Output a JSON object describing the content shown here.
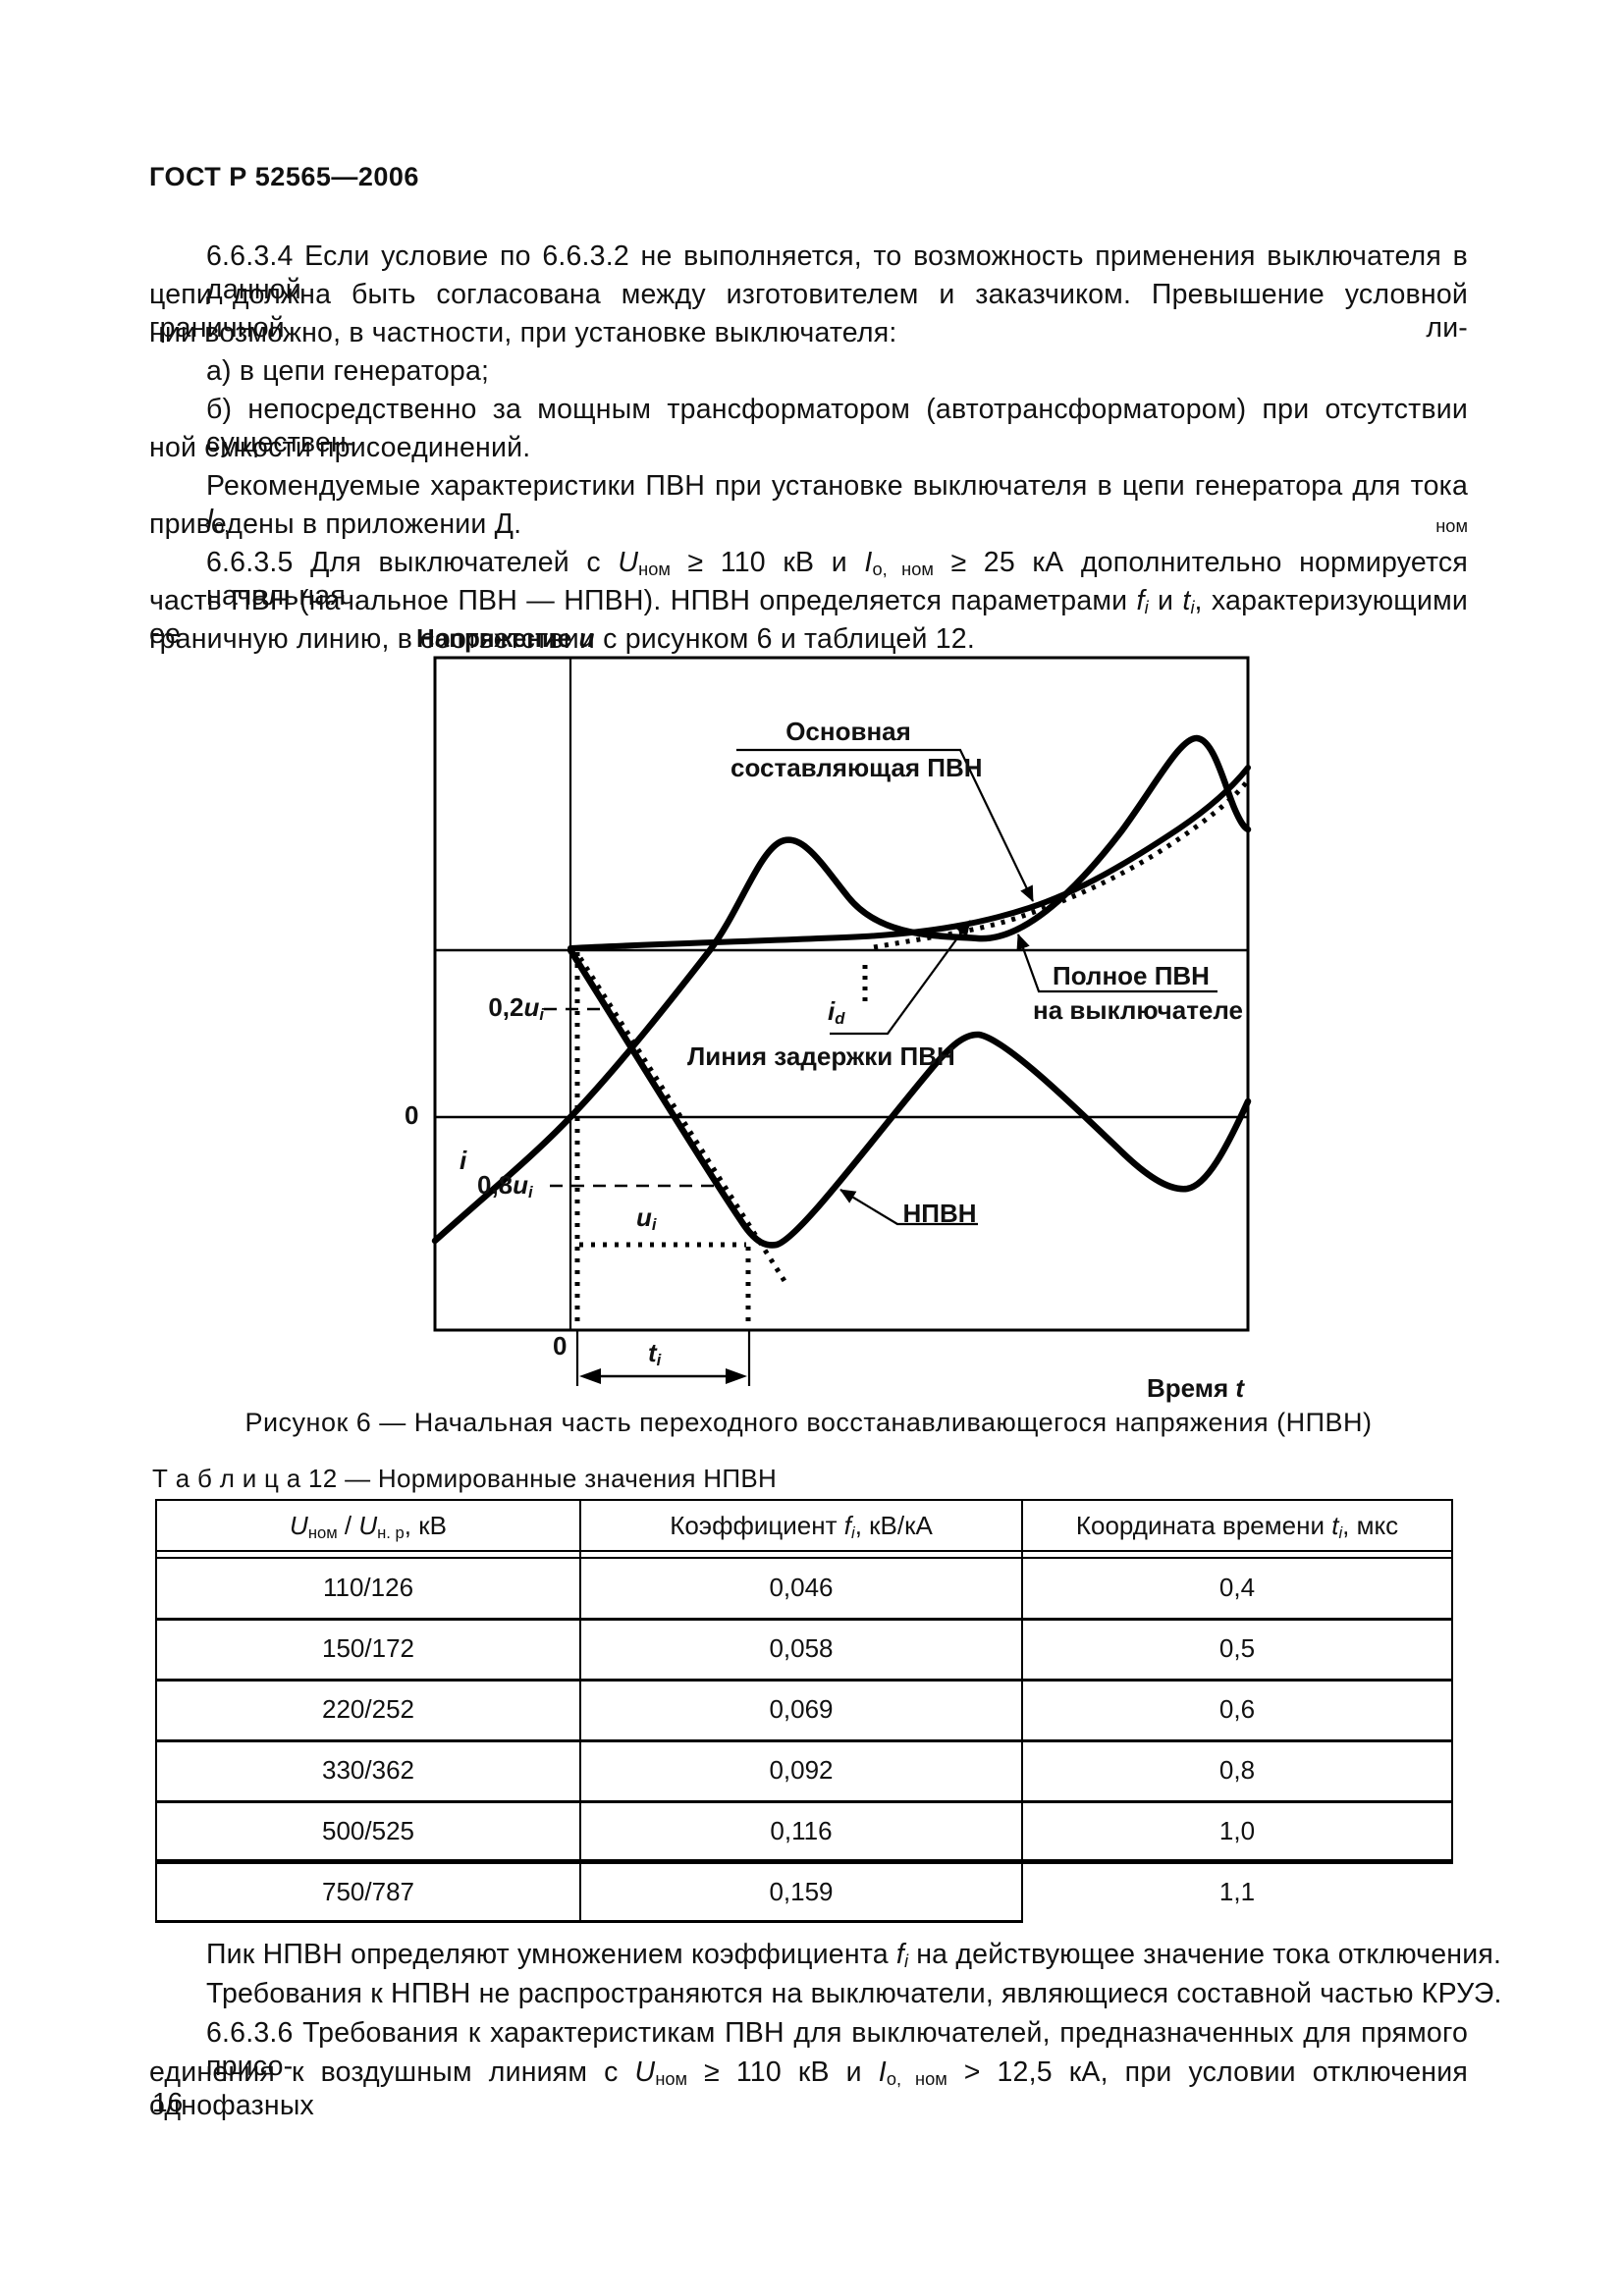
{
  "header": {
    "title": "ГОСТ Р 52565—2006"
  },
  "body": {
    "lines": [
      "6.6.3.4 Если условие по 6.6.3.2 не выполняется, то возможность применения выключателя в данной",
      "цепи должна быть согласована между изготовителем и заказчиком. Превышение условной граничной ли-",
      "нии возможно, в частности, при установке выключателя:",
      "а) в цепи генератора;",
      "б) непосредственно за мощным трансформатором (автотрансформатором) при отсутствии существен-",
      "ной емкости присоединений.",
      "Рекомендуемые характеристики ПВН при установке выключателя в цепи генератора для тока  [[i]]I[[/i]][[sub]]о, ном[[/sub]]",
      "приведены в приложении Д.",
      "6.6.3.5 Для выключателей с [[i]]U[[/i]][[sub]]ном[[/sub]] ≥ 110 кВ и [[i]]I[[/i]][[sub]]о, ном[[/sub]] ≥ 25 кА дополнительно нормируется начальная",
      "часть ПВН (начальное ПВН — НПВН). НПВН определяется параметрами [[i]]f[[/i]][[sub]][[i]]i[[/i]][[/sub]]  и [[i]]t[[/i]][[sub]][[i]]i[[/i]][[/sub]], характеризующими ее",
      "граничную линию, в соответствии с рисунком 6 и таблицей 12."
    ]
  },
  "figure": {
    "axis_y_label": "Напряжение [[i]]u[[/i]]",
    "axis_x_label": "Время [[i]]t[[/i]]",
    "labels": {
      "main_component_1": "Основная",
      "main_component_2": "составляющая ПВН",
      "full_trv_1": "Полное ПВН",
      "full_trv_2": "на выключателе",
      "delay_line": "Линия задержки ПВН",
      "itrv": "НПВН",
      "i_d": "[[i]]i[[/i]][[sub]][[i]]d[[/i]][[/sub]]",
      "u02": "0,2[[i]]u[[/i]][[sub]][[i]]i[[/i]][[/sub]]",
      "u08": "0,8[[i]]u[[/i]][[sub]][[i]]i[[/i]][[/sub]]",
      "u_i": "[[i]]u[[/i]][[sub]][[i]]i[[/i]][[/sub]]",
      "current": "[[i]]i[[/i]]",
      "zero_voltage": "0",
      "zero_time": "0",
      "t_i": "[[i]]t[[/i]][[sub]][[i]]i[[/i]][[/sub]]"
    },
    "caption": "Рисунок 6 — Начальная часть переходного восстанавливающегося напряжения (НПВН)"
  },
  "table": {
    "title": "Т а б л и ц а  12 — Нормированные значения НПВН",
    "headers": [
      "[[i]]U[[/i]][[sub]]ном[[/sub]] / [[i]]U[[/i]][[sub]]н. р[[/sub]], кВ",
      "Коэффициент [[i]]f[[/i]][[sub]][[i]]i[[/i]][[/sub]], кВ/кА",
      "Координата времени [[i]]t[[/i]][[sub]][[i]]i[[/i]][[/sub]], мкс"
    ],
    "rows": [
      {
        "cells": [
          "110/126",
          "0,046",
          "0,4"
        ]
      },
      {
        "cells": [
          "150/172",
          "0,058",
          "0,5"
        ]
      },
      {
        "cells": [
          "220/252",
          "0,069",
          "0,6"
        ]
      },
      {
        "cells": [
          "330/362",
          "0,092",
          "0,8"
        ]
      },
      {
        "cells": [
          "500/525",
          "0,116",
          "1,0"
        ]
      },
      {
        "cells": [
          "750/787",
          "0,159",
          "1,1"
        ]
      }
    ]
  },
  "footer": {
    "lines": [
      "Пик НПВН определяют умножением коэффициента  [[i]]f[[/i]][[sub]][[i]]i[[/i]][[/sub]]  на действующее значение тока отключения.",
      "Требования к НПВН не распространяются на выключатели, являющиеся составной частью КРУЭ.",
      "6.6.3.6 Требования к характеристикам ПВН для выключателей, предназначенных для прямого присо-",
      "единения к воздушным линиям с  [[i]]U[[/i]][[sub]]ном[[/sub]] ≥ 110 кВ и [[i]]I[[/i]][[sub]]о, ном[[/sub]] > 12,5 кА, при условии отключения однофазных"
    ],
    "page_number": "16"
  }
}
